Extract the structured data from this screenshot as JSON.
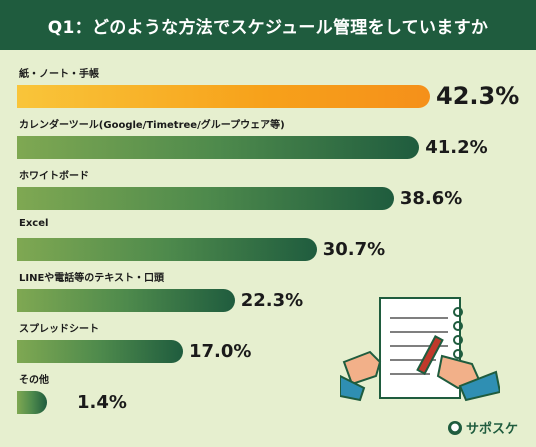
{
  "header": {
    "title": "Q1：どのような方法でスケジュール管理をしていますか"
  },
  "chart_data": {
    "type": "bar",
    "orientation": "horizontal",
    "categories": [
      "紙・ノート・手帳",
      "カレンダーツール(Google/Timetree/グループウェア等)",
      "ホワイトボード",
      "Excel",
      "LINEや電話等のテキスト・口頭",
      "スプレッドシート",
      "その他"
    ],
    "values": [
      42.3,
      41.2,
      38.6,
      30.7,
      22.3,
      17.0,
      1.4
    ],
    "value_labels": [
      "42.3%",
      "41.2%",
      "38.6%",
      "30.7%",
      "22.3%",
      "17.0%",
      "1.4%"
    ],
    "unit": "%",
    "colors": {
      "top": "#f7a11a",
      "others": "#1f5c3e",
      "light": "#7fa852"
    }
  },
  "brand": {
    "icon": "sapo-logo-icon",
    "label": "サポスケ"
  },
  "colors": {
    "background": "#e6efcf",
    "header": "#1f5c3e"
  }
}
